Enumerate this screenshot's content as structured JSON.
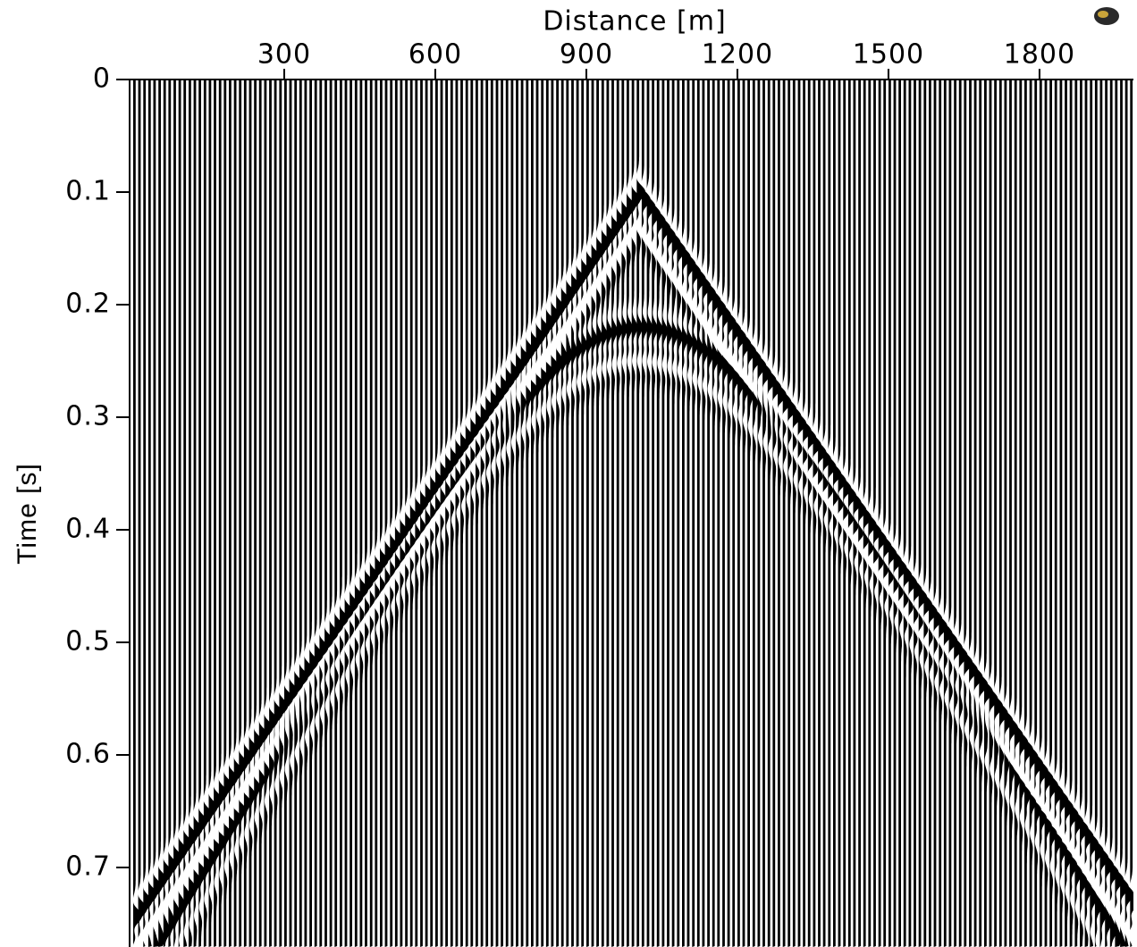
{
  "chart_data": {
    "type": "wiggle",
    "xlabel": "Distance [m]",
    "ylabel": "Time [s]",
    "xlim": [
      0,
      1990
    ],
    "xticks": [
      300,
      600,
      900,
      1200,
      1500,
      1800
    ],
    "ylim": [
      0,
      0.77
    ],
    "yticks": [
      0,
      0.1,
      0.2,
      0.3,
      0.4,
      0.5,
      0.6,
      0.7
    ],
    "y_inverted": true,
    "x_axis_position": "top",
    "trace_spacing": 10,
    "events": [
      {
        "apex_x": 1000,
        "t0": 0.1,
        "velocity": 1555,
        "shape": "linear",
        "amplitude": 1
      },
      {
        "apex_x": 1000,
        "t0": 0.22,
        "velocity": 1298,
        "shape": "hyperbolic",
        "amplitude": 0.55
      }
    ],
    "color": "#000000"
  }
}
